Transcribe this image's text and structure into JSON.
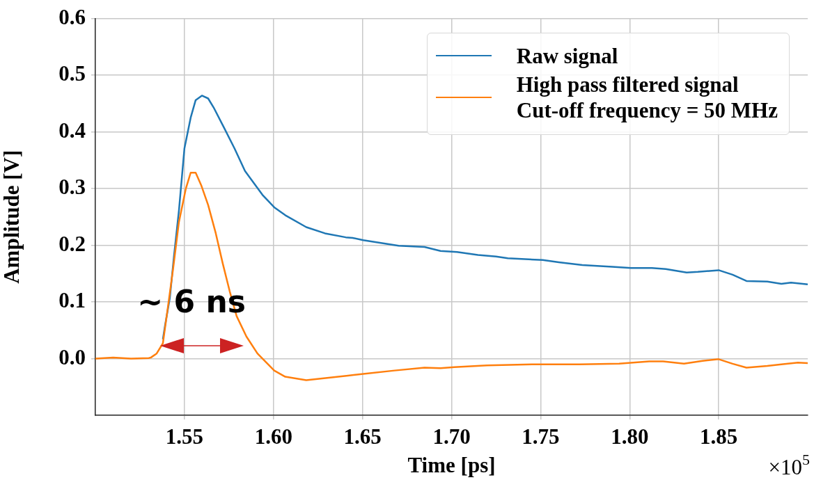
{
  "chart_data": {
    "type": "line",
    "xlabel": "Time [ps]",
    "ylabel": "Amplitude [V]",
    "xlim": [
      1.5,
      1.9
    ],
    "xticks": [
      1.55,
      {
        "value": 1.6,
        "label": "1.60"
      },
      1.65,
      {
        "value": 1.7,
        "label": "1.70"
      },
      1.75,
      {
        "value": 1.8,
        "label": "1.80"
      },
      1.85
    ],
    "ylim": [
      -0.1,
      0.6
    ],
    "yticks": [
      {
        "value": 0,
        "label": "0.0"
      },
      0.1,
      0.2,
      0.3,
      0.4,
      0.5,
      0.6
    ],
    "grid": true,
    "legend": "top right",
    "marker": "none",
    "line_style": "solid",
    "annotations": [
      "~ 6 ns",
      "×10$^{5}$"
    ],
    "series": [
      {
        "name": "Raw signal",
        "color": "#1f77b4",
        "x": [
          1.5379,
          1.5391,
          1.5418,
          1.5441,
          1.5469,
          1.55,
          1.5535,
          1.5563,
          1.5598,
          1.5633,
          1.5664,
          1.5723,
          1.5781,
          1.584,
          1.5938,
          1.6004,
          1.6066,
          1.6184,
          1.6289,
          1.6406,
          1.6445,
          1.6504,
          1.6703,
          1.6848,
          1.6938,
          1.7031,
          1.7148,
          1.725,
          1.7316,
          1.7512,
          1.7602,
          1.7734,
          1.7902,
          1.8008,
          1.8125,
          1.8203,
          1.832,
          1.8383,
          1.85,
          1.8578,
          1.8656,
          1.8773,
          1.8852,
          1.8906,
          1.9
        ],
        "values": [
          0.034,
          0.058,
          0.107,
          0.18,
          0.261,
          0.371,
          0.425,
          0.456,
          0.464,
          0.459,
          0.443,
          0.407,
          0.371,
          0.331,
          0.289,
          0.267,
          0.253,
          0.232,
          0.221,
          0.214,
          0.213,
          0.209,
          0.199,
          0.197,
          0.19,
          0.188,
          0.183,
          0.18,
          0.177,
          0.174,
          0.17,
          0.165,
          0.162,
          0.16,
          0.16,
          0.158,
          0.152,
          0.153,
          0.156,
          0.148,
          0.137,
          0.136,
          0.132,
          0.134,
          0.131
        ]
      },
      {
        "name": "High pass filtered signal\nCut-off frequency = 50 MHz",
        "color": "#ff7f0e",
        "x": [
          1.5,
          1.51,
          1.52,
          1.53,
          1.5312,
          1.5344,
          1.5379,
          1.5402,
          1.5437,
          1.5469,
          1.5508,
          1.5535,
          1.5563,
          1.5594,
          1.5633,
          1.5676,
          1.5715,
          1.5754,
          1.5793,
          1.5848,
          1.591,
          1.6004,
          1.6066,
          1.6184,
          1.6418,
          1.6504,
          1.668,
          1.6848,
          1.6938,
          1.7016,
          1.7199,
          1.7328,
          1.7461,
          1.7719,
          1.7941,
          1.811,
          1.8188,
          1.8305,
          1.841,
          1.85,
          1.8578,
          1.8656,
          1.8773,
          1.8852,
          1.8945,
          1.9
        ],
        "values": [
          0.0,
          0.002,
          0.0,
          0.001,
          0.002,
          0.009,
          0.027,
          0.079,
          0.16,
          0.241,
          0.3,
          0.328,
          0.328,
          0.306,
          0.271,
          0.221,
          0.168,
          0.119,
          0.075,
          0.039,
          0.009,
          -0.021,
          -0.032,
          -0.038,
          -0.03,
          -0.027,
          -0.021,
          -0.016,
          -0.017,
          -0.015,
          -0.012,
          -0.011,
          -0.01,
          -0.01,
          -0.009,
          -0.005,
          -0.005,
          -0.009,
          -0.004,
          -0.001,
          -0.009,
          -0.016,
          -0.013,
          -0.01,
          -0.007,
          -0.008
        ]
      }
    ]
  }
}
